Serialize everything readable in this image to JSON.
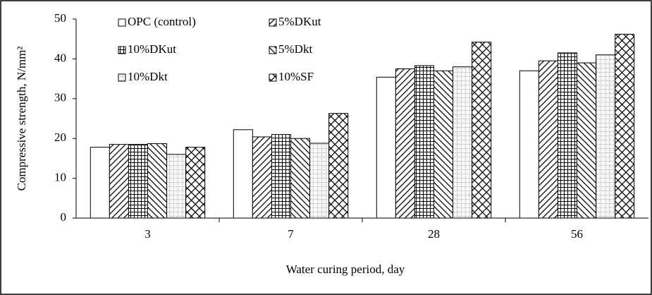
{
  "chart_data": {
    "type": "bar",
    "categories": [
      "3",
      "7",
      "28",
      "56"
    ],
    "series": [
      {
        "name": "OPC (control)",
        "color": "#000000",
        "pattern": "none",
        "values": [
          17.8,
          22.2,
          35.4,
          37
        ]
      },
      {
        "name": "5%DKut",
        "color": "#000000",
        "pattern": "diagonal-down",
        "values": [
          18.5,
          20.4,
          37.5,
          39.5
        ]
      },
      {
        "name": "10%DKut",
        "color": "#000000",
        "pattern": "grid",
        "values": [
          18.5,
          21,
          38.3,
          41.5
        ]
      },
      {
        "name": "5%Dkt",
        "color": "#000000",
        "pattern": "diagonal-up",
        "values": [
          18.7,
          20,
          37,
          39
        ]
      },
      {
        "name": "10%Dkt",
        "color": "#000000",
        "pattern": "dotted-grid",
        "values": [
          16,
          18.8,
          38,
          41
        ]
      },
      {
        "name": "10%SF",
        "color": "#000000",
        "pattern": "crosshatch",
        "values": [
          17.8,
          26.3,
          44.2,
          46.2
        ]
      }
    ],
    "x_label": "Water curing period, day",
    "y_label": "Compressive strength,  N/mm²",
    "ylim": [
      0,
      50
    ],
    "yticks": [
      0,
      10,
      20,
      30,
      40,
      50
    ],
    "grid": false,
    "legend": "top-left"
  }
}
